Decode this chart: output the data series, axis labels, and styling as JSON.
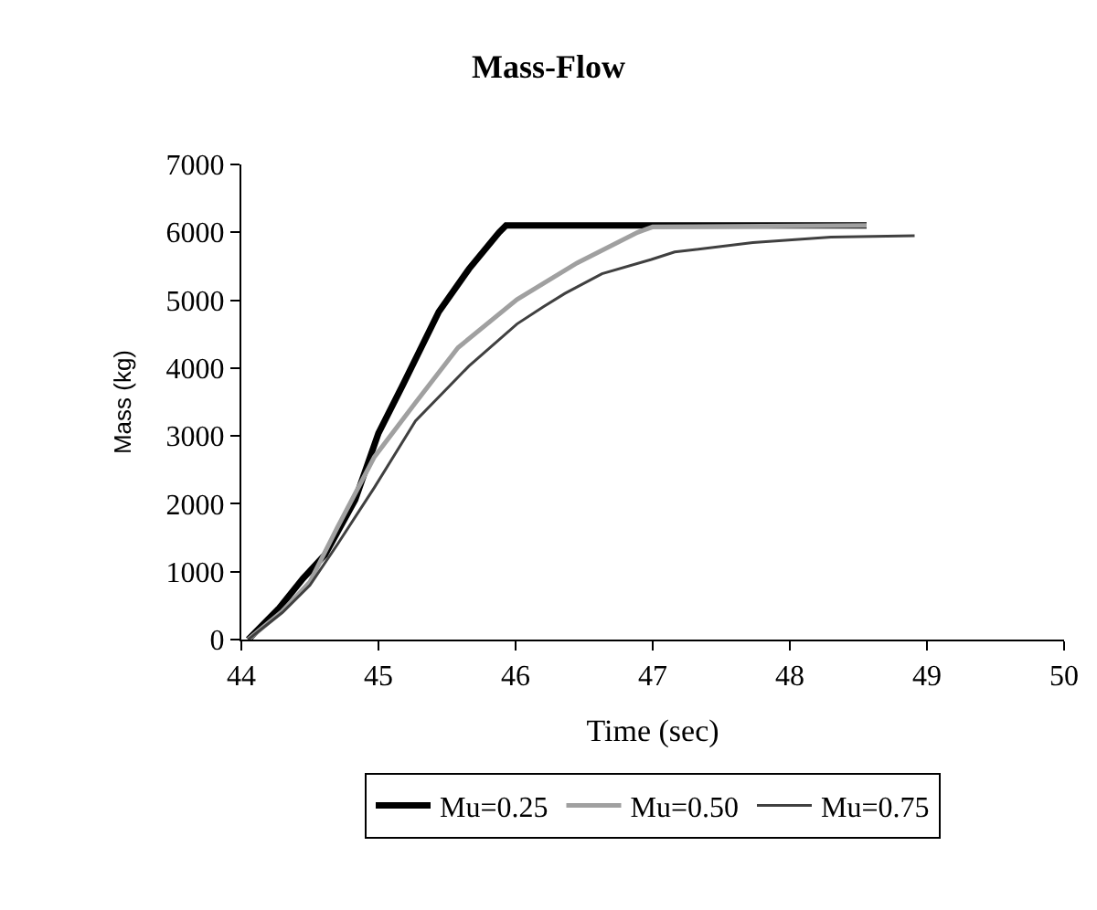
{
  "chart_data": {
    "type": "line",
    "title": "Mass-Flow",
    "xlabel": "Time (sec)",
    "ylabel": "Mass (kg)",
    "xlim": [
      44,
      50
    ],
    "xticks": [
      44,
      45,
      46,
      47,
      48,
      49,
      50
    ],
    "ylim": [
      0,
      7000
    ],
    "yticks": [
      0,
      1000,
      2000,
      3000,
      4000,
      5000,
      6000,
      7000
    ],
    "grid": false,
    "legend": "bottom",
    "marker": "none",
    "line_style": "solid",
    "series": [
      {
        "name": "Mu=0.25",
        "color": "#000000",
        "x": [
          44.05,
          44.27,
          44.45,
          44.61,
          44.83,
          45.0,
          45.18,
          45.44,
          45.66,
          45.88,
          45.93,
          48.56
        ],
        "values": [
          0,
          450,
          900,
          1250,
          2060,
          3040,
          3760,
          4830,
          5460,
          6000,
          6100,
          6100
        ]
      },
      {
        "name": "Mu=0.50",
        "color": "#a0a0a0",
        "x": [
          44.05,
          44.3,
          44.5,
          44.7,
          44.97,
          45.27,
          45.58,
          46.01,
          46.45,
          46.89,
          47.0,
          48.56
        ],
        "values": [
          0,
          420,
          850,
          1650,
          2690,
          3490,
          4300,
          5010,
          5550,
          6000,
          6080,
          6100
        ]
      },
      {
        "name": "Mu=0.75",
        "color": "#404040",
        "x": [
          44.05,
          44.3,
          44.5,
          44.7,
          44.97,
          45.27,
          45.66,
          46.01,
          46.2,
          46.36,
          46.63,
          46.99,
          47.16,
          47.73,
          48.3,
          48.91
        ],
        "values": [
          0,
          400,
          800,
          1400,
          2240,
          3220,
          4030,
          4650,
          4900,
          5100,
          5390,
          5600,
          5710,
          5850,
          5930,
          5950
        ]
      }
    ]
  }
}
